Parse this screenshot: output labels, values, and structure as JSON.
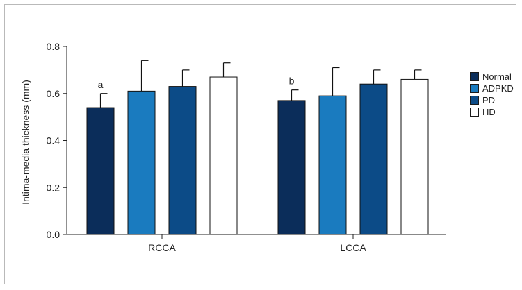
{
  "chart_data": {
    "type": "bar",
    "categories": [
      "RCCA",
      "LCCA"
    ],
    "series": [
      {
        "name": "Normal",
        "color": "#0b2d5a",
        "values": [
          0.54,
          0.57
        ],
        "errors": [
          0.06,
          0.045
        ],
        "annotations": [
          "a",
          "b"
        ]
      },
      {
        "name": "ADPKD",
        "color": "#1a7bbf",
        "values": [
          0.61,
          0.59
        ],
        "errors": [
          0.13,
          0.12
        ],
        "annotations": [
          "",
          ""
        ]
      },
      {
        "name": "PD",
        "color": "#0c4b87",
        "values": [
          0.63,
          0.64
        ],
        "errors": [
          0.07,
          0.06
        ],
        "annotations": [
          "",
          ""
        ]
      },
      {
        "name": "HD",
        "color": "#ffffff",
        "values": [
          0.67,
          0.66
        ],
        "errors": [
          0.06,
          0.04
        ],
        "annotations": [
          "",
          ""
        ]
      }
    ],
    "xlabel": "",
    "ylabel": "Intima-media thickness (mm)",
    "ylim": [
      0,
      0.8
    ],
    "yticks": [
      "0.0",
      "0.2",
      "0.4",
      "0.6",
      "0.8"
    ],
    "grid": false,
    "legend": "right"
  }
}
